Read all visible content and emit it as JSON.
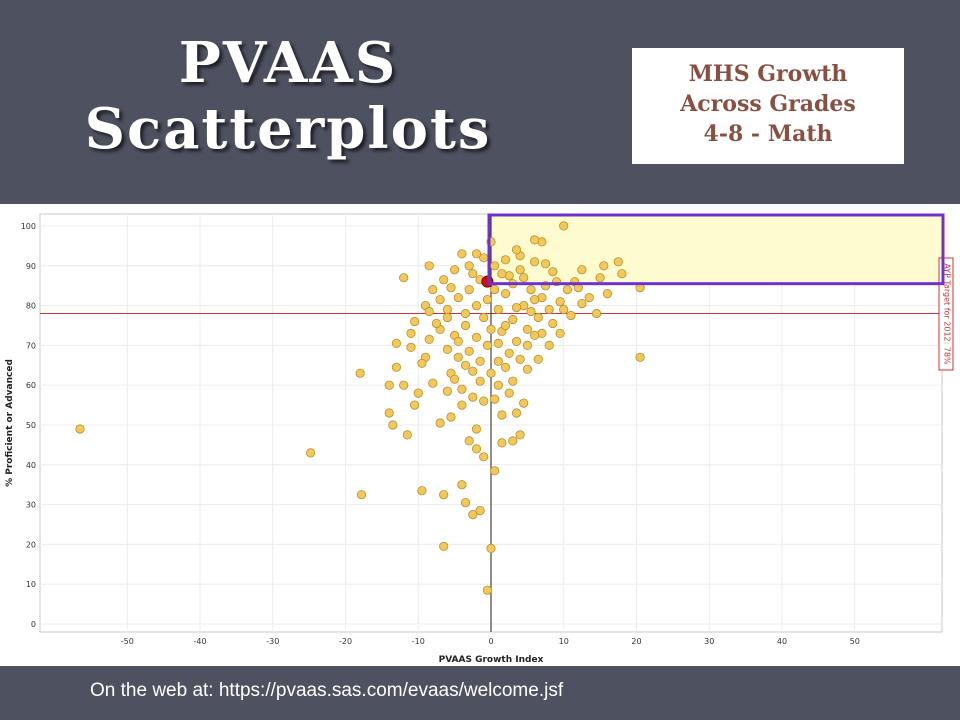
{
  "slide": {
    "title_line1": "PVAAS",
    "title_line2": "Scatterplots",
    "badge_line1": "MHS Growth",
    "badge_line2": "Across Grades",
    "badge_line3": "4-8 - Math",
    "footer": "On the web at: https://pvaas.sas.com/evaas/welcome.jsf"
  },
  "colors": {
    "background": "#4e5160",
    "point_fill": "#f2c85a",
    "point_stroke": "#b8902a",
    "highlight_point": "#cc1111",
    "reference_line": "#d03030",
    "target_box_fill": "#fffbd0",
    "target_box_border": "#7030d0"
  },
  "chart_data": {
    "type": "scatter",
    "xlabel": "PVAAS Growth Index",
    "ylabel": "% Proficient or Advanced",
    "xlim": [
      -62,
      62
    ],
    "ylim": [
      -2,
      103
    ],
    "x_ticks": [
      -50,
      -40,
      -30,
      -20,
      -10,
      0,
      10,
      20,
      30,
      40,
      50
    ],
    "y_ticks": [
      0,
      10,
      20,
      30,
      40,
      50,
      60,
      70,
      80,
      90,
      100
    ],
    "reference_line": {
      "y": 78,
      "label": "AYP Target for 2012: 78%"
    },
    "target_region": {
      "x_min": 0,
      "y_min": 86
    },
    "highlight_point": {
      "x": -0.5,
      "y": 86
    },
    "grid": true,
    "points": [
      [
        -56.5,
        49
      ],
      [
        -24.8,
        43
      ],
      [
        -17.8,
        32.5
      ],
      [
        -18,
        63
      ],
      [
        -14,
        53
      ],
      [
        -13.5,
        50
      ],
      [
        -11.5,
        47.5
      ],
      [
        -9.5,
        33.5
      ],
      [
        -6.5,
        19.5
      ],
      [
        -6.5,
        32.5
      ],
      [
        -4,
        35
      ],
      [
        -3.5,
        30.5
      ],
      [
        -2.5,
        27.5
      ],
      [
        -1.5,
        28.5
      ],
      [
        -0.5,
        8.5
      ],
      [
        0,
        19
      ],
      [
        0.5,
        38.5
      ],
      [
        1.5,
        45.5
      ],
      [
        3,
        46
      ],
      [
        4,
        47.5
      ],
      [
        4.5,
        55.5
      ],
      [
        20.5,
        67
      ],
      [
        20.5,
        84.5
      ],
      [
        17.5,
        91
      ],
      [
        15.5,
        90
      ],
      [
        15,
        87
      ],
      [
        12.5,
        89
      ],
      [
        10,
        100
      ],
      [
        7,
        96
      ],
      [
        6,
        96.5
      ],
      [
        -12,
        87
      ],
      [
        -8.5,
        90
      ],
      [
        -7,
        74
      ],
      [
        -9,
        67
      ],
      [
        -11,
        73
      ],
      [
        -13,
        64.5
      ],
      [
        -12,
        60
      ],
      [
        -10,
        58
      ],
      [
        -8,
        60.5
      ],
      [
        -6,
        58.5
      ],
      [
        -5.5,
        52
      ],
      [
        -4,
        55
      ],
      [
        -3,
        46
      ],
      [
        -2,
        44
      ],
      [
        -1,
        42
      ],
      [
        -2,
        49
      ],
      [
        -4,
        59
      ],
      [
        -7,
        50.5
      ],
      [
        -5.5,
        63
      ],
      [
        -3.5,
        65
      ],
      [
        -1.5,
        61
      ],
      [
        1,
        60
      ],
      [
        2.5,
        58
      ],
      [
        1.5,
        52.5
      ],
      [
        3.5,
        53
      ],
      [
        5,
        64
      ],
      [
        6.5,
        66.5
      ],
      [
        8,
        70
      ],
      [
        9.5,
        73
      ],
      [
        11,
        77.5
      ],
      [
        13.5,
        82
      ],
      [
        14.5,
        78
      ],
      [
        16,
        83
      ],
      [
        18,
        88
      ],
      [
        11.5,
        86
      ],
      [
        8.5,
        88.5
      ],
      [
        6,
        91
      ],
      [
        4,
        92.5
      ],
      [
        2,
        91.5
      ],
      [
        0.5,
        90
      ],
      [
        -1,
        92
      ],
      [
        -3,
        90
      ],
      [
        -5,
        89
      ],
      [
        -6.5,
        86.5
      ],
      [
        -8,
        84
      ],
      [
        -9,
        80
      ],
      [
        -10.5,
        76
      ],
      [
        -6,
        79
      ],
      [
        -4.5,
        82
      ],
      [
        -3,
        84
      ],
      [
        -2,
        80
      ],
      [
        -1,
        77
      ],
      [
        0,
        74
      ],
      [
        1,
        79
      ],
      [
        2,
        83
      ],
      [
        3,
        85.5
      ],
      [
        4.5,
        87
      ],
      [
        5.5,
        84
      ],
      [
        7,
        82
      ],
      [
        8,
        79
      ],
      [
        9.5,
        81
      ],
      [
        10.5,
        84
      ],
      [
        12,
        84.5
      ],
      [
        6.5,
        77
      ],
      [
        5,
        74
      ],
      [
        3.5,
        71
      ],
      [
        2.5,
        68
      ],
      [
        1,
        66
      ],
      [
        -0.5,
        70
      ],
      [
        -2,
        72
      ],
      [
        -3.5,
        75
      ],
      [
        -5,
        72.5
      ],
      [
        -6,
        69
      ],
      [
        -4.5,
        67
      ],
      [
        -2.5,
        63.5
      ],
      [
        0,
        63
      ],
      [
        1.5,
        73.5
      ],
      [
        3,
        76.5
      ],
      [
        4.5,
        80
      ],
      [
        6,
        81.5
      ],
      [
        7.5,
        85
      ],
      [
        9,
        86
      ],
      [
        -7.5,
        75.5
      ],
      [
        -8.5,
        71.5
      ],
      [
        -1.5,
        86.5
      ],
      [
        0.5,
        84
      ],
      [
        2.5,
        87.5
      ],
      [
        4,
        89
      ],
      [
        5.5,
        78.5
      ],
      [
        7,
        73
      ],
      [
        3,
        61
      ],
      [
        -1,
        56
      ],
      [
        -2.5,
        57
      ],
      [
        0.5,
        56.5
      ],
      [
        -5,
        61.5
      ],
      [
        -9.5,
        65.5
      ],
      [
        -11,
        69.5
      ],
      [
        -14,
        60
      ],
      [
        -10.5,
        55
      ],
      [
        -13,
        70.5
      ],
      [
        2,
        75
      ],
      [
        3.5,
        79.5
      ],
      [
        -0.5,
        81.5
      ],
      [
        -3.5,
        78
      ],
      [
        5,
        70
      ],
      [
        6,
        72.5
      ],
      [
        8.5,
        75.5
      ],
      [
        10,
        79
      ],
      [
        12.5,
        80.5
      ],
      [
        1.5,
        88
      ],
      [
        -2.5,
        88
      ],
      [
        0,
        96
      ],
      [
        -4,
        93
      ],
      [
        3.5,
        94
      ],
      [
        -6,
        77
      ],
      [
        -7,
        81.5
      ],
      [
        1,
        70.5
      ],
      [
        4,
        66.5
      ],
      [
        2,
        64.5
      ],
      [
        -1.5,
        66
      ],
      [
        -3,
        68.5
      ],
      [
        -4.5,
        71
      ],
      [
        -5.5,
        84.5
      ],
      [
        -8.5,
        78.5
      ],
      [
        -2,
        93
      ],
      [
        7.5,
        90.5
      ]
    ]
  }
}
